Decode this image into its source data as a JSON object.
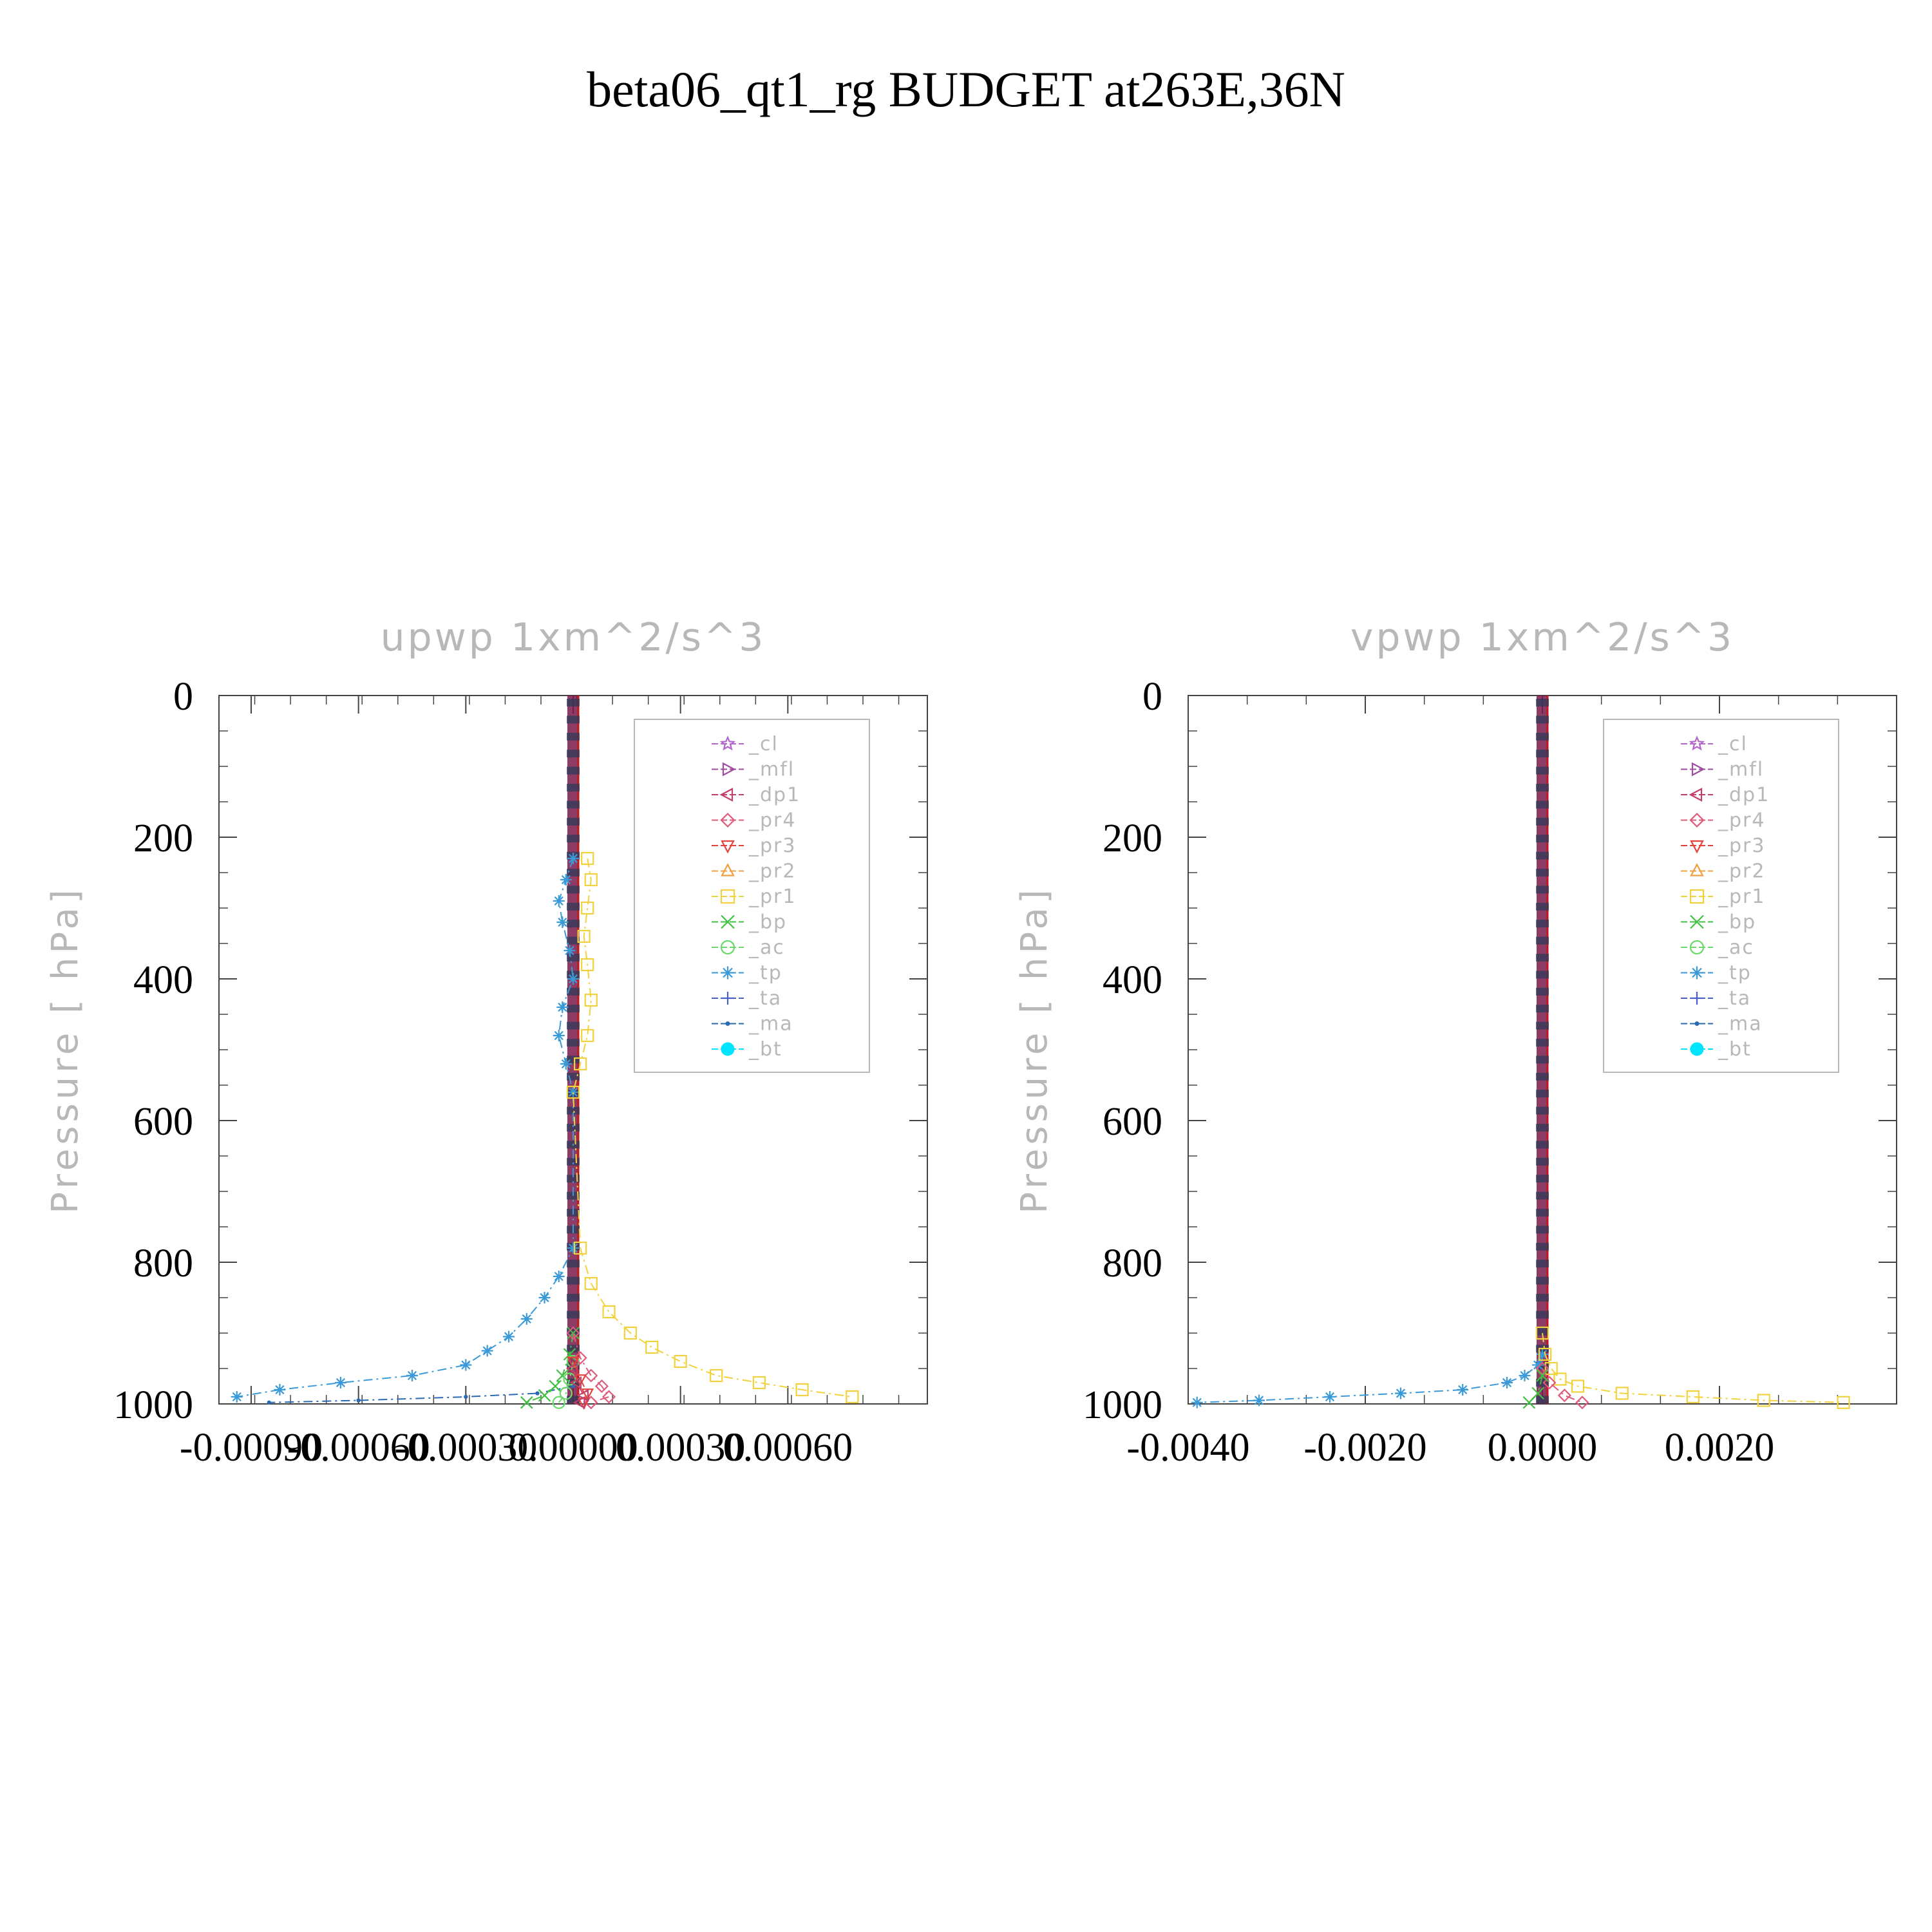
{
  "title": "beta06_qt1_rg  BUDGET at263E,36N",
  "legend_series": [
    {
      "name": "_cl",
      "color": "#b366cc",
      "marker": "star"
    },
    {
      "name": "_mfl",
      "color": "#a04ca0",
      "marker": "tri-right"
    },
    {
      "name": "_dp1",
      "color": "#c0406a",
      "marker": "tri-left"
    },
    {
      "name": "_pr4",
      "color": "#e05a7a",
      "marker": "diamond"
    },
    {
      "name": "_pr3",
      "color": "#e8403c",
      "marker": "tri-down"
    },
    {
      "name": "_pr2",
      "color": "#f0a040",
      "marker": "tri-up"
    },
    {
      "name": "_pr1",
      "color": "#f2d23c",
      "marker": "square"
    },
    {
      "name": "_bp",
      "color": "#40c040",
      "marker": "x"
    },
    {
      "name": "_ac",
      "color": "#6ad86a",
      "marker": "circle"
    },
    {
      "name": "_tp",
      "color": "#3a9ad8",
      "marker": "asterisk"
    },
    {
      "name": "_ta",
      "color": "#4a60c8",
      "marker": "plus"
    },
    {
      "name": "_ma",
      "color": "#2a6ab0",
      "marker": "dot"
    },
    {
      "name": "_bt",
      "color": "#00e5ff",
      "marker": "filled-circle"
    }
  ],
  "chart_data": [
    {
      "type": "line",
      "title": "upwp    1xm^2/s^3",
      "ylabel": "Pressure  [ hPa]",
      "xlabel": "",
      "ylim": [
        1000,
        0
      ],
      "y_ticks": [
        0,
        200,
        400,
        600,
        800,
        1000
      ],
      "xlim": [
        -0.00099,
        0.00099
      ],
      "x_ticks": [
        -0.0009,
        -0.0006,
        -0.0003,
        0.0,
        0.0003,
        0.0006
      ],
      "x_tick_labels": [
        "-0.00090",
        "-0.00060",
        "-0.00030",
        "0.00000",
        "0.00030",
        "0.00060"
      ],
      "legend": "top-right",
      "series": [
        {
          "name": "_tp",
          "x": [
            0.0,
            -2e-05,
            -4e-05,
            -3e-05,
            -1e-05,
            0.0,
            -3e-05,
            -4e-05,
            -2e-05,
            0.0,
            0.0,
            -4e-05,
            -8e-05,
            -0.00013,
            -0.00018,
            -0.00024,
            -0.0003,
            -0.00045,
            -0.00065,
            -0.00082,
            -0.00094
          ],
          "y": [
            230,
            260,
            290,
            320,
            360,
            400,
            440,
            480,
            520,
            560,
            780,
            820,
            850,
            880,
            905,
            925,
            945,
            960,
            970,
            980,
            990
          ]
        },
        {
          "name": "_ma",
          "x": [
            0.0,
            -0.0001,
            -0.0003,
            -0.0006,
            -0.00085
          ],
          "y": [
            975,
            985,
            990,
            995,
            998
          ]
        },
        {
          "name": "_pr1",
          "x": [
            4e-05,
            5e-05,
            4e-05,
            3e-05,
            4e-05,
            5e-05,
            4e-05,
            2e-05,
            0.0,
            2e-05,
            5e-05,
            0.0001,
            0.00016,
            0.00022,
            0.0003,
            0.0004,
            0.00052,
            0.00064,
            0.00078
          ],
          "y": [
            230,
            260,
            300,
            340,
            380,
            430,
            480,
            520,
            560,
            780,
            830,
            870,
            900,
            920,
            940,
            960,
            970,
            980,
            990
          ]
        },
        {
          "name": "_bp",
          "x": [
            0.0,
            -1e-05,
            -3e-05,
            -5e-05,
            -8e-05,
            -0.00013
          ],
          "y": [
            900,
            930,
            960,
            975,
            988,
            998
          ]
        },
        {
          "name": "_ac",
          "x": [
            0.0,
            -1e-05,
            -2e-05,
            -4e-05
          ],
          "y": [
            940,
            965,
            985,
            998
          ]
        },
        {
          "name": "_pr4",
          "x": [
            0.0,
            2e-05,
            5e-05,
            8e-05,
            0.0001,
            5e-05
          ],
          "y": [
            900,
            935,
            960,
            975,
            990,
            998
          ]
        },
        {
          "name": "_pr3",
          "x": [
            0.0,
            2e-05,
            4e-05,
            3e-05
          ],
          "y": [
            940,
            965,
            985,
            998
          ]
        },
        {
          "name": "_dp1",
          "x": [
            0.0,
            1e-05,
            3e-05,
            2e-05
          ],
          "y": [
            950,
            970,
            988,
            998
          ]
        }
      ]
    },
    {
      "type": "line",
      "title": "vpwp    1xm^2/s^3",
      "ylabel": "Pressure  [ hPa]",
      "xlabel": "",
      "ylim": [
        1000,
        0
      ],
      "y_ticks": [
        0,
        200,
        400,
        600,
        800,
        1000
      ],
      "xlim": [
        -0.004,
        0.004
      ],
      "x_ticks": [
        -0.004,
        -0.002,
        0.0,
        0.002
      ],
      "x_tick_labels": [
        "-0.0040",
        "-0.0020",
        "0.0000",
        "0.0020"
      ],
      "legend": "top-right",
      "series": [
        {
          "name": "_tp",
          "x": [
            0.0,
            -5e-05,
            -0.0002,
            -0.0004,
            -0.0009,
            -0.0016,
            -0.0024,
            -0.0032,
            -0.0039
          ],
          "y": [
            930,
            945,
            960,
            970,
            980,
            985,
            990,
            995,
            998
          ]
        },
        {
          "name": "_pr1",
          "x": [
            0.0,
            3e-05,
            0.0001,
            0.0002,
            0.0004,
            0.0009,
            0.0017,
            0.0025,
            0.0034
          ],
          "y": [
            900,
            930,
            950,
            965,
            975,
            985,
            990,
            995,
            998
          ]
        },
        {
          "name": "_pr4",
          "x": [
            0.0,
            8e-05,
            0.00025,
            0.00045
          ],
          "y": [
            950,
            970,
            988,
            998
          ]
        },
        {
          "name": "_bp",
          "x": [
            0.0,
            -5e-05,
            -0.00015
          ],
          "y": [
            960,
            985,
            998
          ]
        }
      ]
    }
  ]
}
